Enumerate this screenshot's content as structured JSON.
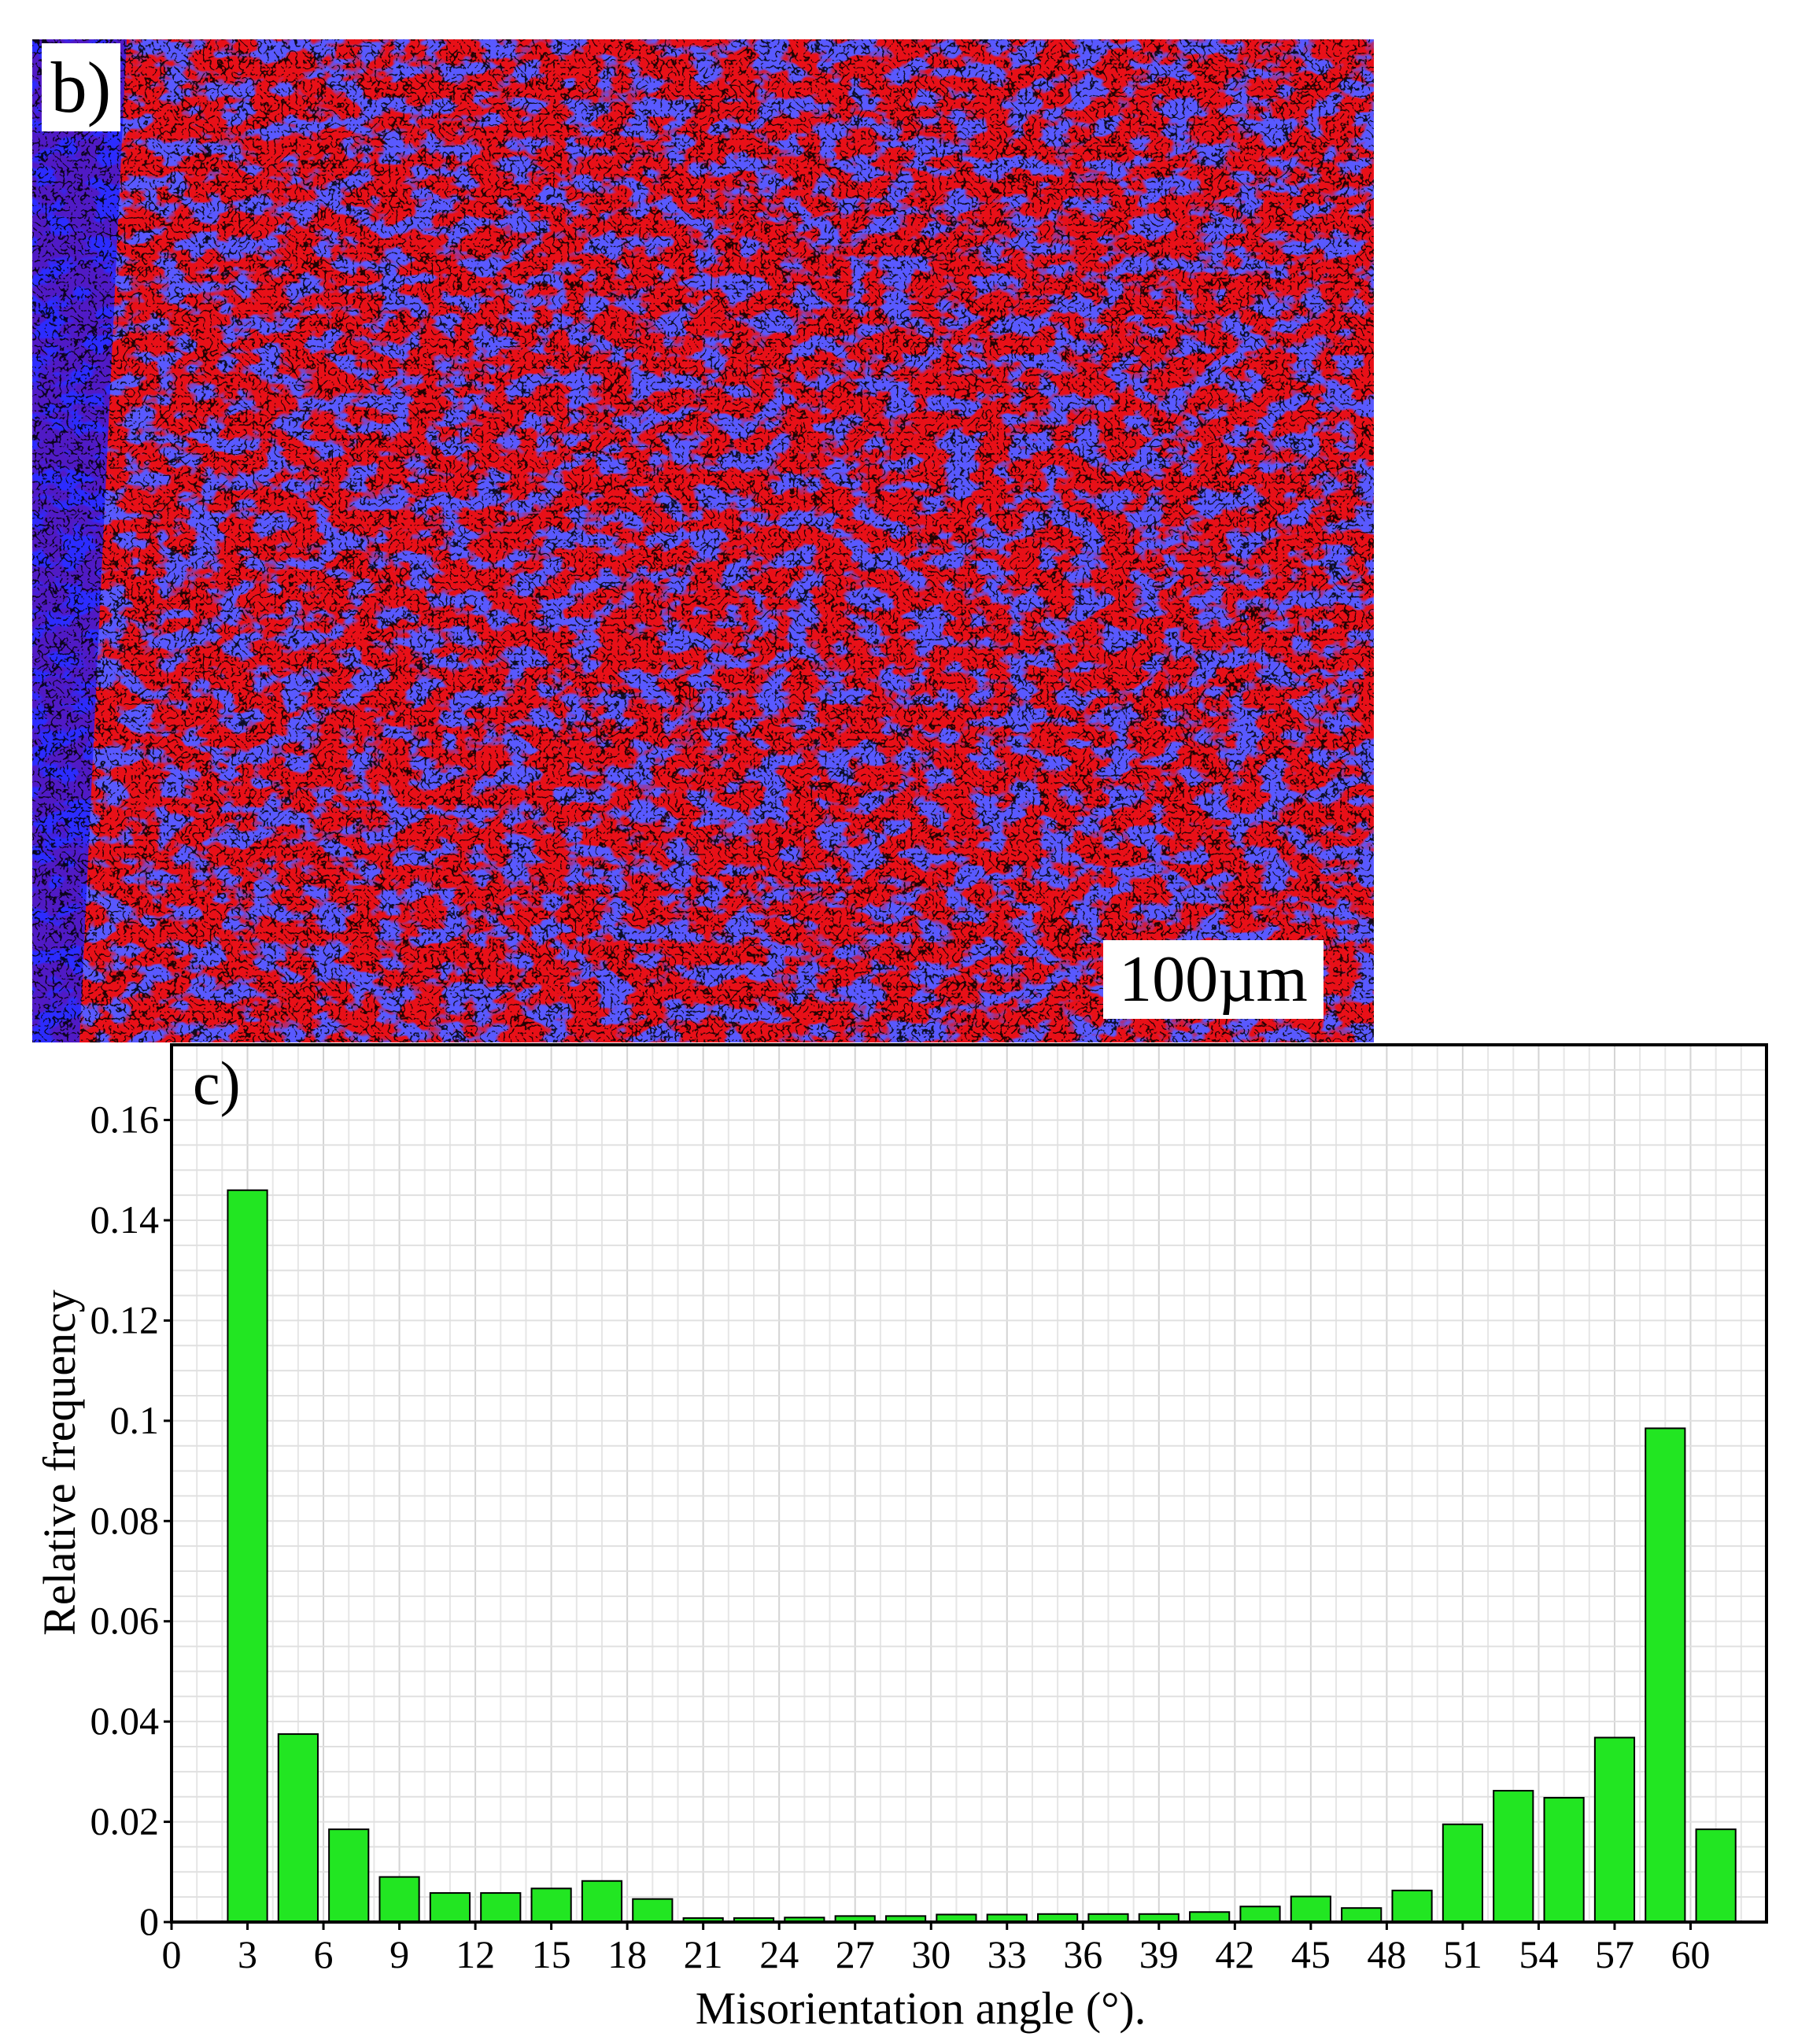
{
  "panel_b": {
    "label": "b)",
    "scale_bar": "100µm",
    "colors": {
      "phase_a": "#ff1010",
      "phase_b": "#1a1aff",
      "boundaries": "#000000"
    }
  },
  "chart_data": {
    "type": "bar",
    "panel_label": "c)",
    "xlabel": "Misorientation angle (°).",
    "ylabel": "Relative frequency",
    "x_ticks": [
      "0",
      "3",
      "6",
      "9",
      "12",
      "15",
      "18",
      "21",
      "24",
      "27",
      "30",
      "33",
      "36",
      "39",
      "42",
      "45",
      "48",
      "51",
      "54",
      "57",
      "60"
    ],
    "y_ticks": [
      "0",
      "0.02",
      "0.04",
      "0.06",
      "0.08",
      "0.1",
      "0.12",
      "0.14",
      "0.16"
    ],
    "xlim": [
      0,
      63
    ],
    "ylim": [
      0,
      0.175
    ],
    "grid": true,
    "bar_color": "#22e622",
    "x": [
      3,
      5,
      7,
      9,
      11,
      13,
      15,
      17,
      19,
      21,
      23,
      25,
      27,
      29,
      31,
      33,
      35,
      37,
      39,
      41,
      43,
      45,
      47,
      49,
      51,
      53,
      55,
      57,
      59,
      61
    ],
    "values": [
      0.146,
      0.0375,
      0.0185,
      0.009,
      0.0058,
      0.0058,
      0.0067,
      0.0082,
      0.0046,
      0.0008,
      0.0008,
      0.0009,
      0.0012,
      0.0012,
      0.0015,
      0.0015,
      0.0016,
      0.0016,
      0.0016,
      0.002,
      0.0031,
      0.0051,
      0.0028,
      0.0063,
      0.0195,
      0.0262,
      0.0248,
      0.0368,
      0.0985,
      0.0185
    ]
  }
}
